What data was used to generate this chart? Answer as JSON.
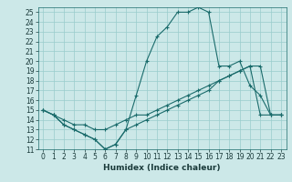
{
  "xlabel": "Humidex (Indice chaleur)",
  "bg_color": "#cce8e8",
  "grid_color": "#99cccc",
  "line_color": "#1a6b6b",
  "xlim": [
    -0.5,
    23.5
  ],
  "ylim": [
    11,
    25.5
  ],
  "xticks": [
    0,
    1,
    2,
    3,
    4,
    5,
    6,
    7,
    8,
    9,
    10,
    11,
    12,
    13,
    14,
    15,
    16,
    17,
    18,
    19,
    20,
    21,
    22,
    23
  ],
  "yticks": [
    11,
    12,
    13,
    14,
    15,
    16,
    17,
    18,
    19,
    20,
    21,
    22,
    23,
    24,
    25
  ],
  "line1_x": [
    0,
    1,
    2,
    3,
    4,
    5,
    6,
    7,
    8,
    9,
    10,
    11,
    12,
    13,
    14,
    15,
    16,
    17,
    18,
    19,
    20,
    21,
    22,
    23
  ],
  "line1_y": [
    15.0,
    14.5,
    13.5,
    13.0,
    12.5,
    12.0,
    11.0,
    11.5,
    13.0,
    16.5,
    20.0,
    22.5,
    23.5,
    25.0,
    25.0,
    25.5,
    25.0,
    19.5,
    19.5,
    20.0,
    17.5,
    16.5,
    14.5,
    14.5
  ],
  "line2_x": [
    0,
    1,
    2,
    3,
    4,
    5,
    6,
    7,
    8,
    9,
    10,
    11,
    12,
    13,
    14,
    15,
    16,
    17,
    18,
    19,
    20,
    21,
    22,
    23
  ],
  "line2_y": [
    15.0,
    14.5,
    14.0,
    13.5,
    13.5,
    13.0,
    13.0,
    13.5,
    14.0,
    14.5,
    14.5,
    15.0,
    15.5,
    16.0,
    16.5,
    17.0,
    17.5,
    18.0,
    18.5,
    19.0,
    19.5,
    19.5,
    14.5,
    14.5
  ],
  "line3_x": [
    0,
    1,
    2,
    3,
    4,
    5,
    6,
    7,
    8,
    9,
    10,
    11,
    12,
    13,
    14,
    15,
    16,
    17,
    18,
    19,
    20,
    21,
    22,
    23
  ],
  "line3_y": [
    15.0,
    14.5,
    13.5,
    13.0,
    12.5,
    12.0,
    11.0,
    11.5,
    13.0,
    13.5,
    14.0,
    14.5,
    15.0,
    15.5,
    16.0,
    16.5,
    17.0,
    18.0,
    18.5,
    19.0,
    19.5,
    14.5,
    14.5,
    14.5
  ],
  "tick_fontsize": 5.5,
  "xlabel_fontsize": 6.5
}
